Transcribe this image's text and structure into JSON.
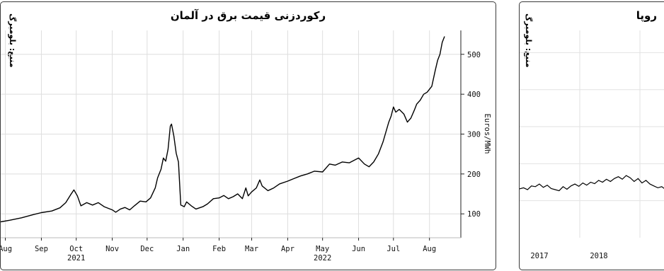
{
  "chart_data": [
    {
      "type": "line",
      "title": "رکوردزنی قیمت برق در آلمان",
      "source": "منبع: بلومبرگ",
      "ylabel": "Euros/MWh",
      "yticks": [
        100,
        200,
        300,
        400,
        500
      ],
      "ylim": [
        40,
        560
      ],
      "xlim": [
        "2021-07-28",
        "2022-08-28"
      ],
      "grid": true,
      "xticks": [
        {
          "date": "2021-08-01",
          "label": "Aug",
          "year": ""
        },
        {
          "date": "2021-09-01",
          "label": "Sep",
          "year": ""
        },
        {
          "date": "2021-10-01",
          "label": "Oct",
          "year": "2021"
        },
        {
          "date": "2021-11-01",
          "label": "Nov",
          "year": ""
        },
        {
          "date": "2021-12-01",
          "label": "Dec",
          "year": ""
        },
        {
          "date": "2022-01-01",
          "label": "Jan",
          "year": ""
        },
        {
          "date": "2022-02-01",
          "label": "Feb",
          "year": ""
        },
        {
          "date": "2022-03-01",
          "label": "Mar",
          "year": ""
        },
        {
          "date": "2022-04-01",
          "label": "Apr",
          "year": ""
        },
        {
          "date": "2022-05-01",
          "label": "May",
          "year": "2022"
        },
        {
          "date": "2022-06-01",
          "label": "Jun",
          "year": ""
        },
        {
          "date": "2022-07-01",
          "label": "Jul",
          "year": ""
        },
        {
          "date": "2022-08-01",
          "label": "Aug",
          "year": ""
        }
      ],
      "series": [
        {
          "color": "#000000",
          "points": [
            [
              "2021-07-28",
              80
            ],
            [
              "2021-08-05",
              84
            ],
            [
              "2021-08-15",
              90
            ],
            [
              "2021-08-25",
              98
            ],
            [
              "2021-09-01",
              103
            ],
            [
              "2021-09-10",
              107
            ],
            [
              "2021-09-17",
              115
            ],
            [
              "2021-09-22",
              128
            ],
            [
              "2021-09-26",
              147
            ],
            [
              "2021-09-29",
              160
            ],
            [
              "2021-10-02",
              145
            ],
            [
              "2021-10-05",
              120
            ],
            [
              "2021-10-10",
              128
            ],
            [
              "2021-10-15",
              122
            ],
            [
              "2021-10-20",
              128
            ],
            [
              "2021-10-25",
              118
            ],
            [
              "2021-11-01",
              110
            ],
            [
              "2021-11-04",
              104
            ],
            [
              "2021-11-08",
              112
            ],
            [
              "2021-11-12",
              116
            ],
            [
              "2021-11-16",
              110
            ],
            [
              "2021-11-20",
              120
            ],
            [
              "2021-11-25",
              132
            ],
            [
              "2021-11-30",
              130
            ],
            [
              "2021-12-04",
              140
            ],
            [
              "2021-12-08",
              165
            ],
            [
              "2021-12-10",
              190
            ],
            [
              "2021-12-13",
              212
            ],
            [
              "2021-12-15",
              240
            ],
            [
              "2021-12-17",
              232
            ],
            [
              "2021-12-19",
              262
            ],
            [
              "2021-12-21",
              320
            ],
            [
              "2021-12-22",
              325
            ],
            [
              "2021-12-24",
              295
            ],
            [
              "2021-12-26",
              252
            ],
            [
              "2021-12-28",
              230
            ],
            [
              "2021-12-30",
              122
            ],
            [
              "2022-01-02",
              118
            ],
            [
              "2022-01-04",
              130
            ],
            [
              "2022-01-08",
              120
            ],
            [
              "2022-01-12",
              112
            ],
            [
              "2022-01-18",
              118
            ],
            [
              "2022-01-22",
              125
            ],
            [
              "2022-01-27",
              138
            ],
            [
              "2022-02-01",
              140
            ],
            [
              "2022-02-05",
              146
            ],
            [
              "2022-02-09",
              138
            ],
            [
              "2022-02-13",
              143
            ],
            [
              "2022-02-17",
              150
            ],
            [
              "2022-02-21",
              138
            ],
            [
              "2022-02-24",
              165
            ],
            [
              "2022-02-26",
              145
            ],
            [
              "2022-03-01",
              155
            ],
            [
              "2022-03-05",
              165
            ],
            [
              "2022-03-08",
              185
            ],
            [
              "2022-03-10",
              170
            ],
            [
              "2022-03-15",
              158
            ],
            [
              "2022-03-20",
              165
            ],
            [
              "2022-03-25",
              175
            ],
            [
              "2022-04-01",
              182
            ],
            [
              "2022-04-06",
              188
            ],
            [
              "2022-04-12",
              195
            ],
            [
              "2022-04-18",
              200
            ],
            [
              "2022-04-24",
              207
            ],
            [
              "2022-05-01",
              205
            ],
            [
              "2022-05-04",
              215
            ],
            [
              "2022-05-07",
              225
            ],
            [
              "2022-05-12",
              222
            ],
            [
              "2022-05-18",
              230
            ],
            [
              "2022-05-24",
              228
            ],
            [
              "2022-06-01",
              240
            ],
            [
              "2022-06-06",
              225
            ],
            [
              "2022-06-10",
              218
            ],
            [
              "2022-06-14",
              230
            ],
            [
              "2022-06-18",
              250
            ],
            [
              "2022-06-22",
              280
            ],
            [
              "2022-06-25",
              310
            ],
            [
              "2022-06-27",
              330
            ],
            [
              "2022-06-29",
              345
            ],
            [
              "2022-07-01",
              368
            ],
            [
              "2022-07-03",
              355
            ],
            [
              "2022-07-06",
              362
            ],
            [
              "2022-07-10",
              350
            ],
            [
              "2022-07-13",
              330
            ],
            [
              "2022-07-16",
              340
            ],
            [
              "2022-07-19",
              360
            ],
            [
              "2022-07-21",
              375
            ],
            [
              "2022-07-24",
              385
            ],
            [
              "2022-07-27",
              400
            ],
            [
              "2022-07-30",
              405
            ],
            [
              "2022-08-03",
              420
            ],
            [
              "2022-08-06",
              460
            ],
            [
              "2022-08-08",
              485
            ],
            [
              "2022-08-10",
              500
            ],
            [
              "2022-08-12",
              530
            ],
            [
              "2022-08-14",
              545
            ]
          ]
        }
      ]
    },
    {
      "type": "line",
      "title": "روپا",
      "source": "منبع: بلومبرگ",
      "xticks": [
        {
          "label": "2017"
        },
        {
          "label": "2018"
        }
      ],
      "grid": true,
      "series": [
        {
          "color": "#000000",
          "values": [
            132,
            135,
            130,
            140,
            138,
            145,
            136,
            142,
            133,
            130,
            127,
            138,
            131,
            140,
            145,
            139,
            148,
            142,
            150,
            146,
            155,
            150,
            158,
            152,
            160,
            165,
            158,
            168,
            162,
            152,
            160,
            148,
            155,
            145,
            140,
            135,
            138,
            130,
            126
          ]
        }
      ]
    }
  ]
}
